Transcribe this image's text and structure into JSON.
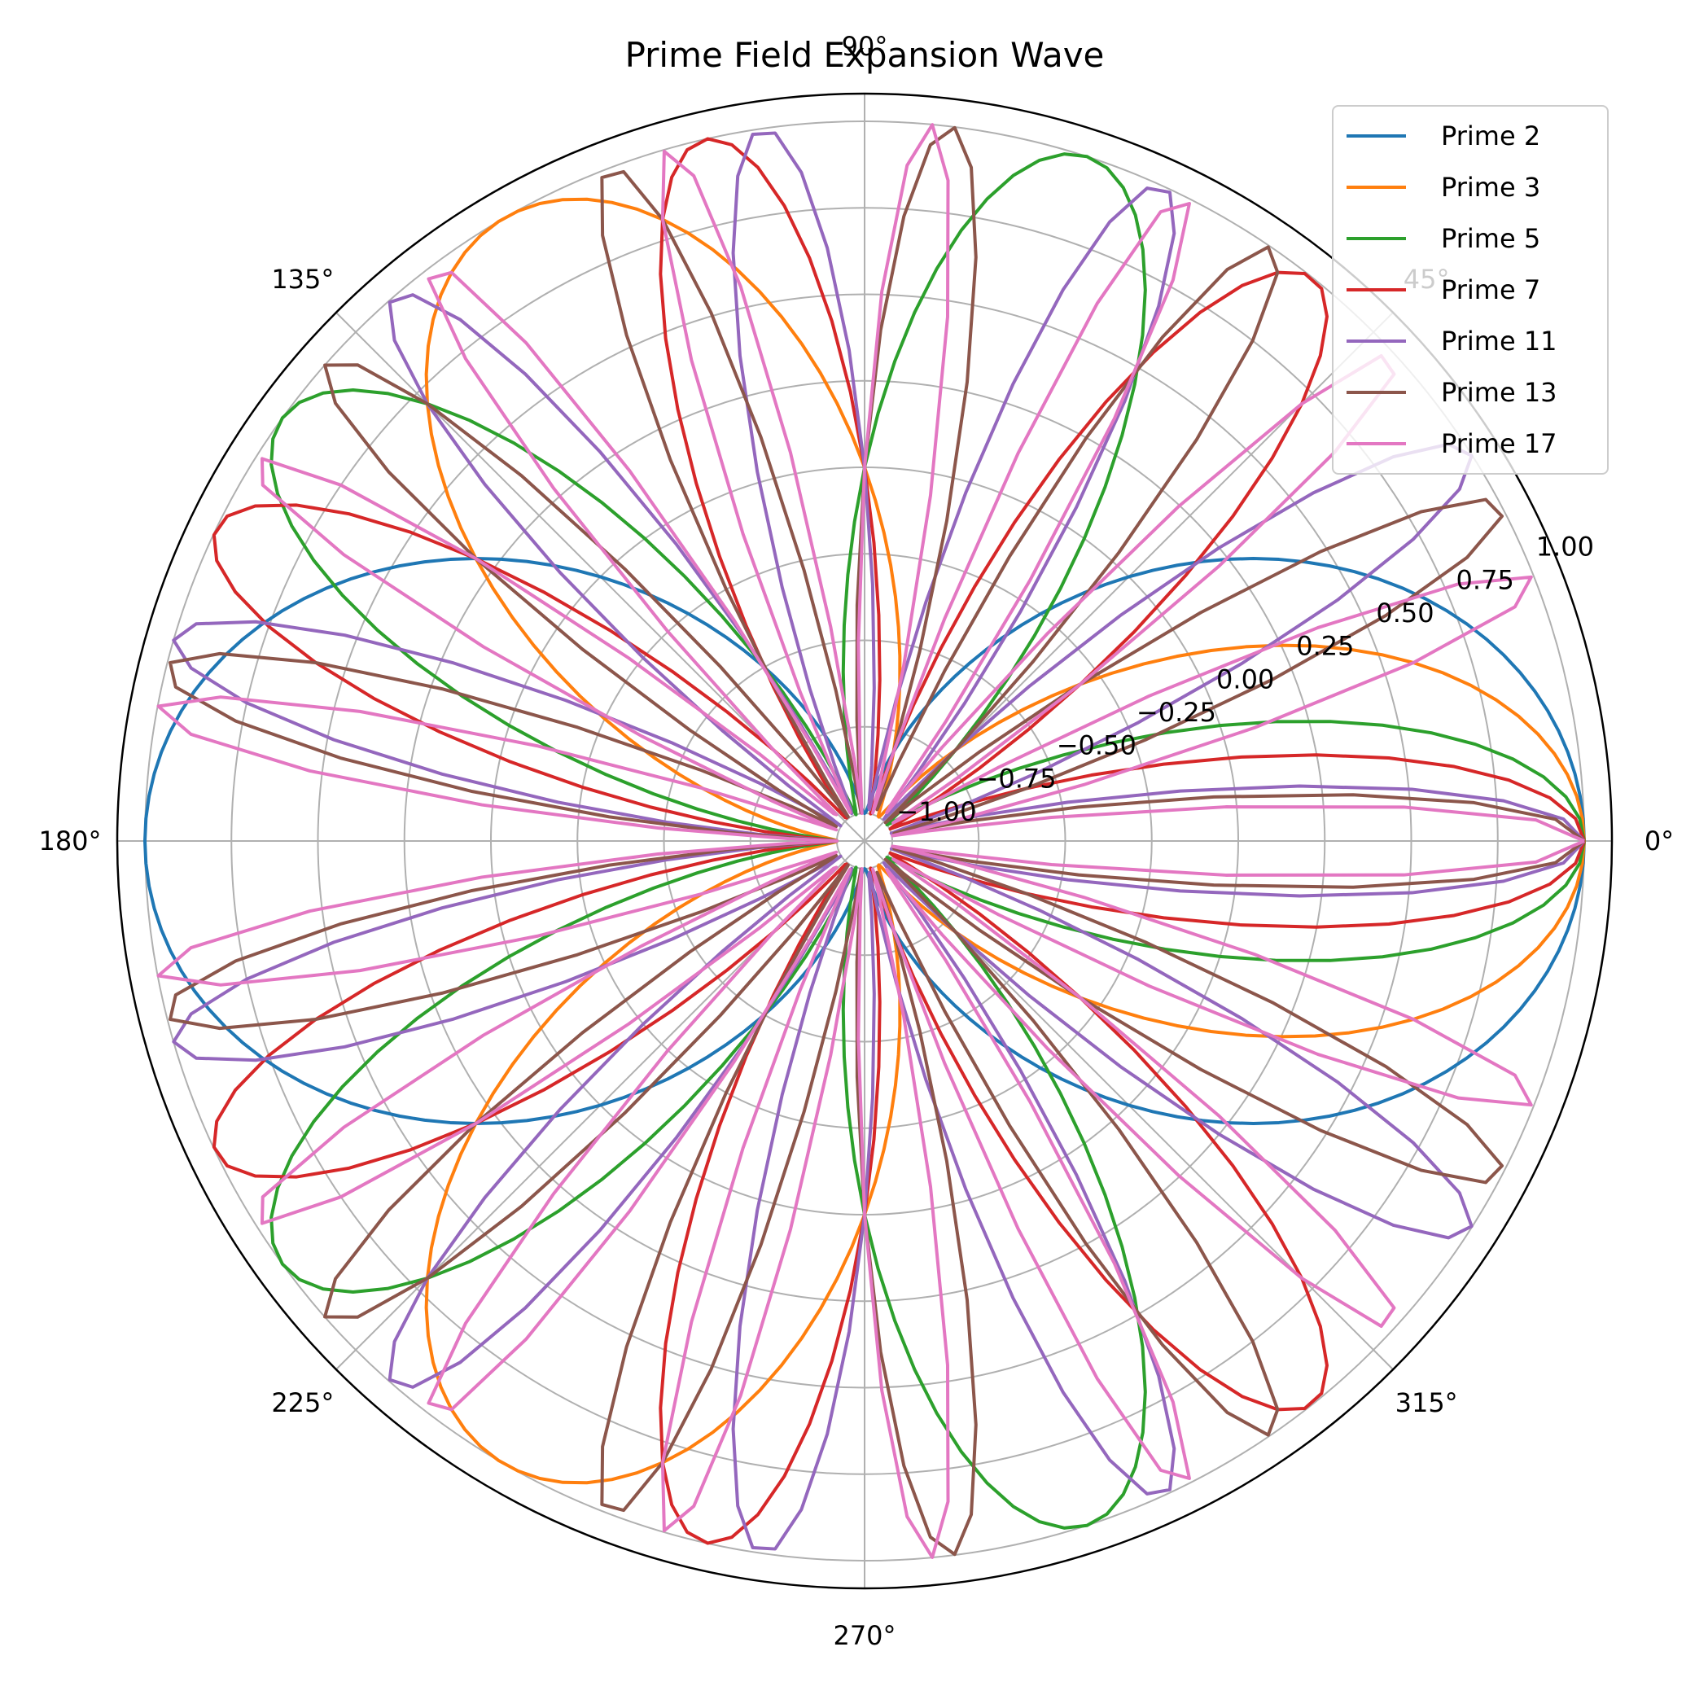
{
  "chart_data": {
    "type": "line",
    "projection": "polar",
    "title": "Prime Field Expansion Wave",
    "theta_unit": "degrees",
    "theta_ticks": [
      "0°",
      "45°",
      "90°",
      "135°",
      "180°",
      "225°",
      "270°",
      "315°"
    ],
    "theta_tick_values": [
      0,
      45,
      90,
      135,
      180,
      225,
      270,
      315
    ],
    "r_ticks": [
      "−1.00",
      "−0.75",
      "−0.50",
      "−0.25",
      "0.00",
      "0.25",
      "0.50",
      "0.75",
      "1.00"
    ],
    "r_tick_values": [
      -1.0,
      -0.75,
      -0.5,
      -0.25,
      0.0,
      0.25,
      0.5,
      0.75,
      1.0
    ],
    "rlim": [
      -1.08,
      1.08
    ],
    "r_label_angle_deg": 22.5,
    "grid": true,
    "legend_position": "upper right",
    "curve_equation": "r = cos(p·θ)",
    "theta_samples": 200,
    "series": [
      {
        "name": "Prime 2",
        "p": 2,
        "color": "#1f77b4"
      },
      {
        "name": "Prime 3",
        "p": 3,
        "color": "#ff7f0e"
      },
      {
        "name": "Prime 5",
        "p": 5,
        "color": "#2ca02c"
      },
      {
        "name": "Prime 7",
        "p": 7,
        "color": "#d62728"
      },
      {
        "name": "Prime 11",
        "p": 11,
        "color": "#9467bd"
      },
      {
        "name": "Prime 13",
        "p": 13,
        "color": "#8c564b"
      },
      {
        "name": "Prime 17",
        "p": 17,
        "color": "#e377c2"
      }
    ]
  }
}
